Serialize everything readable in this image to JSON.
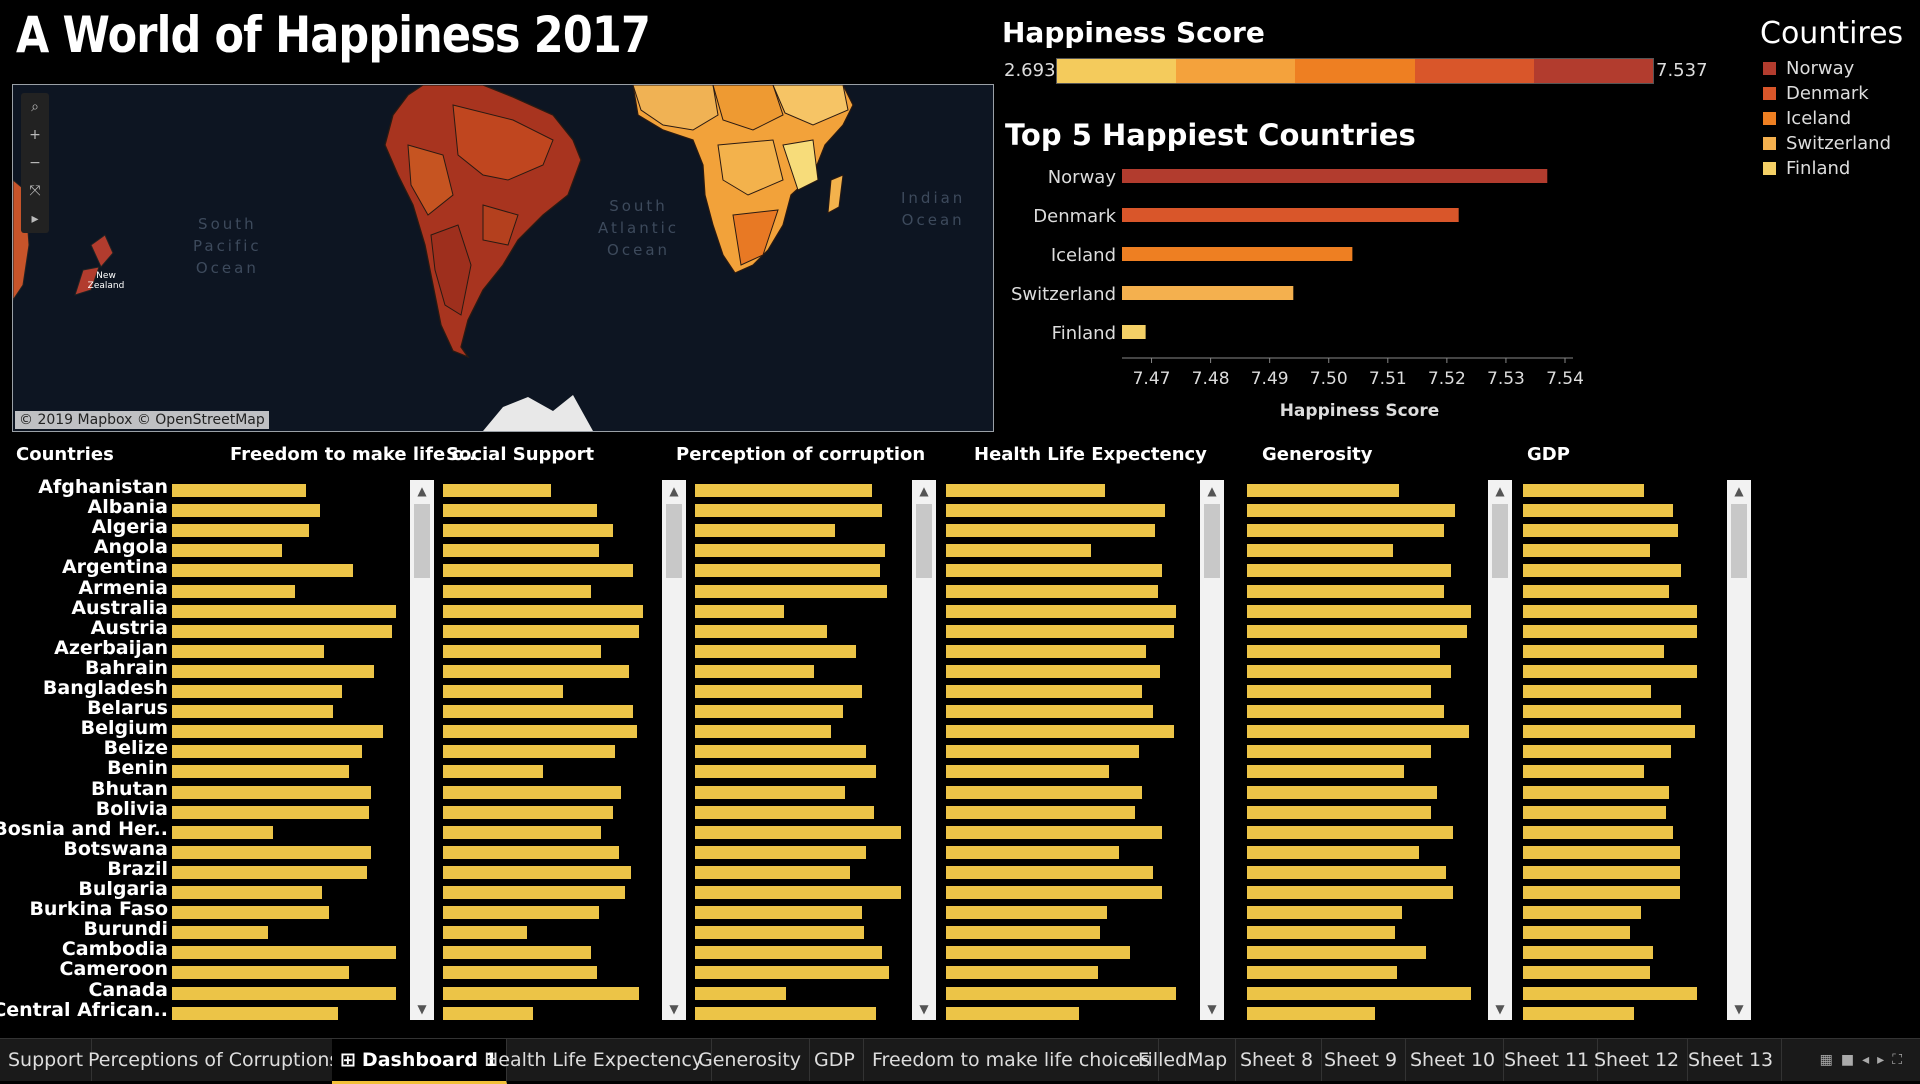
{
  "title": "A World of Happiness 2017",
  "map": {
    "oceans": [
      {
        "id": "south-pacific",
        "lines": [
          "South",
          "Pacific",
          "Ocean"
        ]
      },
      {
        "id": "south-atlantic",
        "lines": [
          "South",
          "Atlantic",
          "Ocean"
        ]
      },
      {
        "id": "indian",
        "lines": [
          "Indian",
          "Ocean"
        ]
      }
    ],
    "country_label": "New Zealand",
    "attribution": "© 2019 Mapbox © OpenStreetMap",
    "controls": [
      "search-icon",
      "zoom-in-icon",
      "zoom-out-icon",
      "reset-icon",
      "play-icon"
    ]
  },
  "happiness_scale": {
    "title": "Happiness Score",
    "min": "2.693",
    "max": "7.537",
    "colors": [
      "#f4cb5c",
      "#f4a23c",
      "#ee7f22",
      "#d9562a",
      "#b23c2e"
    ]
  },
  "top5": {
    "title": "Top 5 Happiest Countries",
    "xlabel": "Happiness Score",
    "ticks": [
      "7.47",
      "7.48",
      "7.49",
      "7.50",
      "7.51",
      "7.52",
      "7.53",
      "7.54"
    ],
    "countries": [
      {
        "name": "Norway",
        "value": 7.537,
        "color": "#b23c2e"
      },
      {
        "name": "Denmark",
        "value": 7.522,
        "color": "#d9562a"
      },
      {
        "name": "Iceland",
        "value": 7.504,
        "color": "#ee7f22"
      },
      {
        "name": "Switzerland",
        "value": 7.494,
        "color": "#f4b04e"
      },
      {
        "name": "Finland",
        "value": 7.469,
        "color": "#f4d066"
      }
    ]
  },
  "legend": {
    "title": "Countires",
    "items": [
      {
        "name": "Norway",
        "color": "#b23c2e"
      },
      {
        "name": "Denmark",
        "color": "#d9562a"
      },
      {
        "name": "Iceland",
        "color": "#ee7f22"
      },
      {
        "name": "Switzerland",
        "color": "#f4b04e"
      },
      {
        "name": "Finland",
        "color": "#f4d066"
      }
    ]
  },
  "table": {
    "countries_header": "Countries",
    "countries": [
      "Afghanistan",
      "Albania",
      "Algeria",
      "Angola",
      "Argentina",
      "Armenia",
      "Australia",
      "Austria",
      "Azerbaijan",
      "Bahrain",
      "Bangladesh",
      "Belarus",
      "Belgium",
      "Belize",
      "Benin",
      "Bhutan",
      "Bolivia",
      "Bosnia and Her..",
      "Botswana",
      "Brazil",
      "Bulgaria",
      "Burkina Faso",
      "Burundi",
      "Cambodia",
      "Cameroon",
      "Canada",
      "Central African.."
    ],
    "columns": [
      {
        "header": "Freedom to make life c..",
        "values": [
          0.6,
          0.66,
          0.61,
          0.49,
          0.81,
          0.55,
          1.0,
          0.98,
          0.68,
          0.9,
          0.76,
          0.72,
          0.94,
          0.85,
          0.79,
          0.89,
          0.88,
          0.45,
          0.89,
          0.87,
          0.67,
          0.7,
          0.43,
          1.0,
          0.79,
          1.0,
          0.74
        ]
      },
      {
        "header": "Social Support",
        "values": [
          0.54,
          0.77,
          0.85,
          0.78,
          0.95,
          0.74,
          1.0,
          0.98,
          0.79,
          0.93,
          0.6,
          0.95,
          0.97,
          0.86,
          0.5,
          0.89,
          0.85,
          0.79,
          0.88,
          0.94,
          0.91,
          0.78,
          0.42,
          0.74,
          0.77,
          0.98,
          0.45
        ]
      },
      {
        "header": "Perception of corruption",
        "values": [
          0.86,
          0.91,
          0.68,
          0.92,
          0.9,
          0.93,
          0.43,
          0.64,
          0.78,
          0.58,
          0.81,
          0.72,
          0.66,
          0.83,
          0.88,
          0.73,
          0.87,
          1.0,
          0.83,
          0.75,
          1.0,
          0.81,
          0.82,
          0.91,
          0.94,
          0.44,
          0.88
        ]
      },
      {
        "header": "Health Life Expectency",
        "values": [
          0.69,
          0.95,
          0.91,
          0.63,
          0.94,
          0.92,
          1.0,
          0.99,
          0.87,
          0.93,
          0.85,
          0.9,
          0.99,
          0.84,
          0.71,
          0.85,
          0.82,
          0.94,
          0.75,
          0.9,
          0.94,
          0.7,
          0.67,
          0.8,
          0.66,
          1.0,
          0.58
        ]
      },
      {
        "header": "Generosity",
        "values": [
          0.68,
          0.93,
          0.88,
          0.65,
          0.91,
          0.88,
          1.0,
          0.98,
          0.86,
          0.91,
          0.82,
          0.88,
          0.99,
          0.82,
          0.7,
          0.85,
          0.82,
          0.92,
          0.77,
          0.89,
          0.92,
          0.69,
          0.66,
          0.8,
          0.67,
          1.0,
          0.57
        ]
      },
      {
        "header": "GDP",
        "values": [
          0.69,
          0.85,
          0.88,
          0.72,
          0.9,
          0.83,
          0.99,
          0.99,
          0.8,
          0.99,
          0.73,
          0.9,
          0.98,
          0.84,
          0.69,
          0.83,
          0.81,
          0.85,
          0.89,
          0.89,
          0.89,
          0.67,
          0.61,
          0.74,
          0.72,
          0.99,
          0.63
        ]
      }
    ]
  },
  "tabs": [
    "Support",
    "Perceptions of Corruptions",
    "Dashboard 1",
    "Health Life Expectency",
    "Generosity",
    "GDP",
    "Freedom to make life choices",
    "FilledMap",
    "Sheet 8",
    "Sheet 9",
    "Sheet 10",
    "Sheet 11",
    "Sheet 12",
    "Sheet 13"
  ],
  "active_tab": "Dashboard 1",
  "tab_icon": "⊞",
  "scroll_up": "▲",
  "scroll_down": "▼",
  "bar_color": "#ecc447"
}
